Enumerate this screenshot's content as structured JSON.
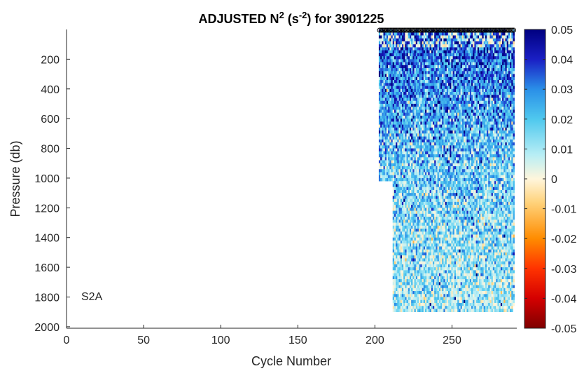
{
  "chart_data": {
    "type": "heatmap",
    "title": "ADJUSTED N",
    "title_sup1": "2",
    "title_mid": " (s",
    "title_sup2": "-2",
    "title_end": ") for 3901225",
    "xlabel": "Cycle Number",
    "ylabel": "Pressure (db)",
    "annotation": "S2A",
    "xlim": [
      0,
      292
    ],
    "ylim": [
      2010,
      0
    ],
    "y_reversed": true,
    "xticks": [
      0,
      50,
      100,
      150,
      200,
      250
    ],
    "yticks": [
      200,
      400,
      600,
      800,
      1000,
      1200,
      1400,
      1600,
      1800,
      2000
    ],
    "colorbar": {
      "min": -0.05,
      "max": 0.05,
      "ticks": [
        "0.05",
        "0.04",
        "0.03",
        "0.02",
        "0.01",
        "0",
        "-0.01",
        "-0.02",
        "-0.03",
        "-0.04",
        "-0.05"
      ],
      "colormap": [
        "#7f0000",
        "#ff0000",
        "#ff8c00",
        "#ffd27a",
        "#fff6dc",
        "#b8eef5",
        "#4fc8ee",
        "#2a6fe0",
        "#1a1fc4",
        "#000080"
      ]
    },
    "data_extent": {
      "cycle_start": 203,
      "cycle_end": 290,
      "pressure_top": 0,
      "pressure_bottom_main": 1900,
      "pressure_bottom_early": 1010,
      "pressure_bottom_last": 1860
    },
    "surface_marker_pressure": 5
  }
}
